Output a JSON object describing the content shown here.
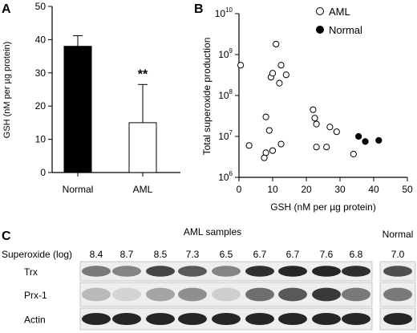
{
  "colors": {
    "normal": "#000000",
    "aml": "#ffffff",
    "axis": "#000000",
    "band": "#1a1a1a",
    "blot_bg": "#eeeeee"
  },
  "chart_data": [
    {
      "panel": "A",
      "type": "bar",
      "categories": [
        "Normal",
        "AML"
      ],
      "values": [
        38,
        15
      ],
      "error": [
        3.2,
        11.5
      ],
      "fills": [
        "#000000",
        "#ffffff"
      ],
      "annotation": "**",
      "ylabel": "GSH  (nM per µg protein)",
      "ylim": [
        0,
        50
      ],
      "yticks": [
        0,
        10,
        20,
        30,
        40,
        50
      ]
    },
    {
      "panel": "B",
      "type": "scatter",
      "xlabel": "GSH (nM per µg protein)",
      "ylabel": "Total superoxide production",
      "xlim": [
        0,
        50
      ],
      "xticks": [
        0,
        10,
        20,
        30,
        40,
        50
      ],
      "ylim": [
        1000000,
        10000000000
      ],
      "yscale": "log",
      "yticks": [
        {
          "value": 1000000,
          "base": "10",
          "exp": "6"
        },
        {
          "value": 10000000,
          "base": "10",
          "exp": "7"
        },
        {
          "value": 100000000,
          "base": "10",
          "exp": "8"
        },
        {
          "value": 1000000000,
          "base": "10",
          "exp": "9"
        },
        {
          "value": 10000000000,
          "base": "10",
          "exp": "10"
        }
      ],
      "legend_position": "top-right",
      "series": [
        {
          "name": "AML",
          "marker": "open-circle",
          "points": [
            [
              0.5,
              550000000
            ],
            [
              3,
              6000000
            ],
            [
              7.5,
              3000000
            ],
            [
              8,
              30000000
            ],
            [
              8,
              4000000
            ],
            [
              9,
              14000000
            ],
            [
              9.5,
              280000000
            ],
            [
              10,
              4500000
            ],
            [
              10,
              350000000
            ],
            [
              11,
              1800000000
            ],
            [
              12,
              200000000
            ],
            [
              12.5,
              550000000
            ],
            [
              12.5,
              6500000
            ],
            [
              14,
              320000000
            ],
            [
              22,
              45000000
            ],
            [
              22.5,
              28000000
            ],
            [
              23,
              20000000
            ],
            [
              23,
              5500000
            ],
            [
              26,
              5500000
            ],
            [
              27,
              17000000
            ],
            [
              29,
              13000000
            ],
            [
              34,
              3700000
            ]
          ]
        },
        {
          "name": "Normal",
          "marker": "filled-circle",
          "points": [
            [
              35.5,
              10000000
            ],
            [
              37.5,
              7500000
            ],
            [
              41.5,
              8000000
            ]
          ]
        }
      ]
    },
    {
      "panel": "C",
      "type": "table",
      "header_group": "AML samples",
      "row_label": "Superoxide (log)",
      "aml_values": [
        "8.4",
        "8.7",
        "8.5",
        "7.3",
        "6.5",
        "6.7",
        "6.7",
        "7.6",
        "6.8"
      ],
      "normal_header": "Normal",
      "normal_value": "7.0",
      "blots": [
        {
          "name": "Trx",
          "aml_intensity": [
            0.55,
            0.5,
            0.8,
            0.7,
            0.5,
            0.9,
            0.95,
            0.95,
            0.9
          ],
          "normal_intensity": 0.75
        },
        {
          "name": "Prx-1",
          "aml_intensity": [
            0.25,
            0.12,
            0.35,
            0.45,
            0.15,
            0.6,
            0.7,
            0.85,
            0.55
          ],
          "normal_intensity": 0.55
        },
        {
          "name": "Actin",
          "aml_intensity": [
            0.95,
            0.95,
            0.95,
            0.95,
            0.95,
            0.95,
            0.95,
            0.95,
            0.95
          ],
          "normal_intensity": 0.95
        }
      ]
    }
  ],
  "panel_labels": {
    "a": "A",
    "b": "B",
    "c": "C"
  }
}
